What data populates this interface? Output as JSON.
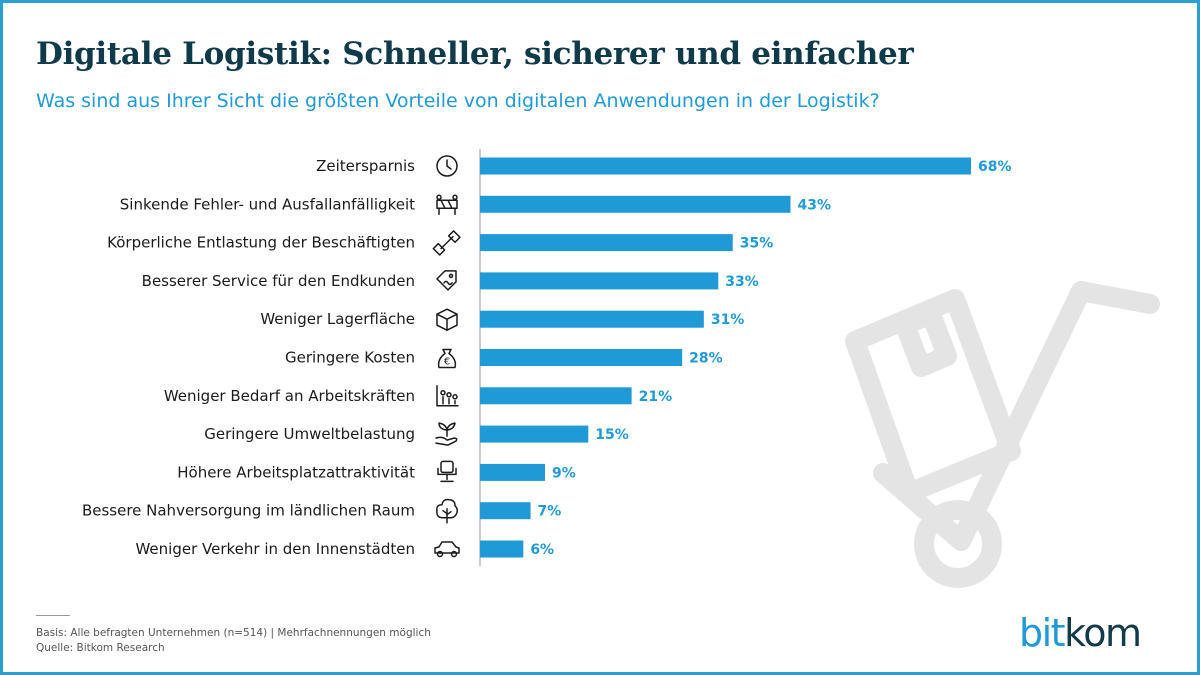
{
  "header": {
    "title": "Digitale Logistik: Schneller, sicherer und einfacher",
    "subtitle": "Was sind aus Ihrer Sicht die größten Vorteile von digitalen Anwendungen in der Logistik?"
  },
  "chart_data": {
    "type": "bar",
    "orientation": "horizontal",
    "title": "Digitale Logistik: Schneller, sicherer und einfacher",
    "subtitle": "Was sind aus Ihrer Sicht die größten Vorteile von digitalen Anwendungen in der Logistik?",
    "xlabel": "",
    "ylabel": "",
    "unit": "%",
    "xlim": [
      0,
      68
    ],
    "grid": false,
    "legend": "none",
    "bar_color": "#1f9ad6",
    "categories": [
      "Zeitersparnis",
      "Sinkende Fehler- und Ausfallanfälligkeit",
      "Körperliche Entlastung der Beschäftigten",
      "Besserer Service für den Endkunden",
      "Weniger Lagerfläche",
      "Geringere Kosten",
      "Weniger Bedarf an Arbeitskräften",
      "Geringere Umweltbelastung",
      "Höhere Arbeitsplatzattraktivität",
      "Bessere Nahversorgung im ländlichen Raum",
      "Weniger Verkehr in den Innenstädten"
    ],
    "values": [
      68,
      43,
      35,
      33,
      31,
      28,
      21,
      15,
      9,
      7,
      6
    ],
    "value_labels": [
      "68%",
      "43%",
      "35%",
      "33%",
      "31%",
      "28%",
      "21%",
      "15%",
      "9%",
      "7%",
      "6%"
    ],
    "icons": [
      "clock-icon",
      "barrier-icon",
      "dumbbell-icon",
      "price-tag-icon",
      "box-icon",
      "euro-money-bag-icon",
      "workforce-icon",
      "plant-in-hand-icon",
      "office-chair-icon",
      "tree-icon",
      "car-icon"
    ]
  },
  "footer": {
    "basis": "Basis: Alle befragten Unternehmen (n=514) | Mehrfachnennungen möglich",
    "source": "Quelle: Bitkom Research",
    "logo_part1": "bit",
    "logo_part2": "kom"
  },
  "colors": {
    "accent": "#1f9ad6",
    "title": "#0f3a4a",
    "frame": "#2b9fd4",
    "watermark": "#e4e4e4"
  }
}
